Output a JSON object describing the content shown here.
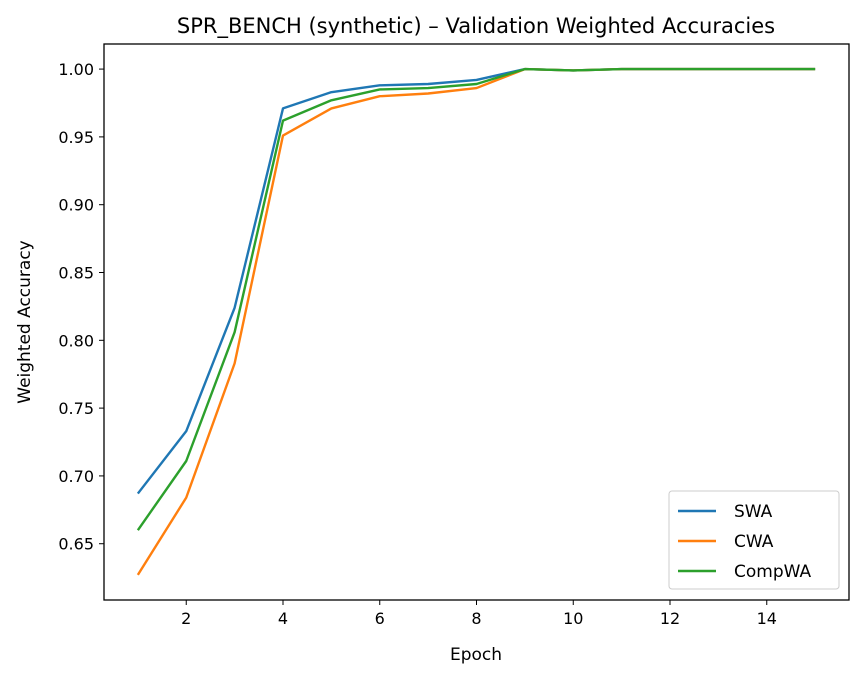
{
  "chart_data": {
    "type": "line",
    "title": "SPR_BENCH (synthetic) – Validation Weighted Accuracies",
    "xlabel": "Epoch",
    "ylabel": "Weighted Accuracy",
    "x": [
      1,
      2,
      3,
      4,
      5,
      6,
      7,
      8,
      9,
      10,
      11,
      12,
      13,
      14,
      15
    ],
    "xlim": [
      0.3,
      15.7
    ],
    "ylim": [
      0.6085,
      1.0185
    ],
    "xticks": [
      2,
      4,
      6,
      8,
      10,
      12,
      14
    ],
    "xtick_labels": [
      "2",
      "4",
      "6",
      "8",
      "10",
      "12",
      "14"
    ],
    "yticks": [
      0.65,
      0.7,
      0.75,
      0.8,
      0.85,
      0.9,
      0.95,
      1.0
    ],
    "ytick_labels": [
      "0.65",
      "0.70",
      "0.75",
      "0.80",
      "0.85",
      "0.90",
      "0.95",
      "1.00"
    ],
    "grid": false,
    "legend_position": "bottom-right",
    "series": [
      {
        "name": "SWA",
        "color": "#1f77b4",
        "values": [
          0.687,
          0.733,
          0.824,
          0.971,
          0.983,
          0.988,
          0.989,
          0.992,
          1.0,
          0.999,
          1.0,
          1.0,
          1.0,
          1.0,
          1.0
        ]
      },
      {
        "name": "CWA",
        "color": "#ff7f0e",
        "values": [
          0.627,
          0.684,
          0.783,
          0.951,
          0.971,
          0.98,
          0.982,
          0.986,
          1.0,
          0.999,
          1.0,
          1.0,
          1.0,
          1.0,
          1.0
        ]
      },
      {
        "name": "CompWA",
        "color": "#2ca02c",
        "values": [
          0.66,
          0.711,
          0.806,
          0.962,
          0.977,
          0.985,
          0.986,
          0.989,
          1.0,
          0.999,
          1.0,
          1.0,
          1.0,
          1.0,
          1.0
        ]
      }
    ]
  }
}
